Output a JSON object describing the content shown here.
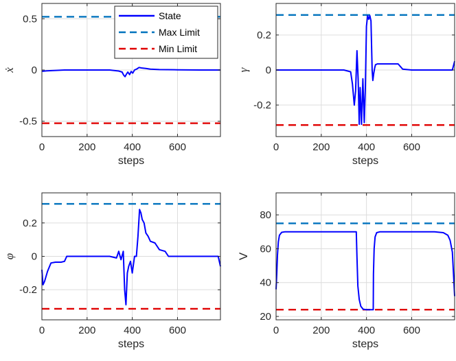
{
  "chart_data": [
    {
      "type": "line",
      "ylabel": "ẋ",
      "ylabel_style": "italic",
      "xlabel": "steps",
      "xlim": [
        0,
        790
      ],
      "ylim": [
        -0.65,
        0.65
      ],
      "xticks": [
        0,
        200,
        400,
        600
      ],
      "yticks": [
        -0.5,
        0,
        0.5
      ],
      "ytick_labels": [
        "-0.5",
        "0",
        "0.5"
      ],
      "grid": true,
      "legend": {
        "placement": "top-right",
        "entries": [
          {
            "label": "State",
            "color": "#0000ff",
            "style": "solid"
          },
          {
            "label": "Max Limit",
            "color": "#0072bd",
            "style": "dashed"
          },
          {
            "label": "Min Limit",
            "color": "#e00000",
            "style": "dashed"
          }
        ]
      },
      "limits": {
        "max": 0.52,
        "min": -0.52
      },
      "series": [
        {
          "name": "State",
          "color": "#0000ff",
          "x": [
            0,
            5,
            20,
            60,
            100,
            200,
            300,
            340,
            355,
            362,
            368,
            374,
            380,
            388,
            395,
            402,
            410,
            420,
            430,
            440,
            460,
            480,
            520,
            600,
            700,
            790
          ],
          "y": [
            -0.01,
            -0.012,
            -0.008,
            -0.004,
            0.0,
            0.0,
            0.0,
            -0.01,
            -0.02,
            -0.05,
            -0.065,
            -0.04,
            -0.02,
            -0.045,
            -0.015,
            -0.03,
            0.0,
            0.01,
            0.025,
            0.02,
            0.015,
            0.008,
            0.004,
            0.002,
            0.0,
            0.0
          ]
        }
      ]
    },
    {
      "type": "line",
      "ylabel": "γ",
      "ylabel_style": "italic",
      "xlabel": "steps",
      "xlim": [
        0,
        790
      ],
      "ylim": [
        -0.38,
        0.38
      ],
      "xticks": [
        0,
        200,
        400,
        600
      ],
      "yticks": [
        -0.2,
        0,
        0.2
      ],
      "ytick_labels": [
        "-0.2",
        "0",
        "0.2"
      ],
      "grid": true,
      "limits": {
        "max": 0.3141,
        "min": -0.3141
      },
      "series": [
        {
          "name": "State",
          "color": "#0000ff",
          "x": [
            0,
            100,
            200,
            300,
            330,
            338,
            346,
            352,
            358,
            363,
            368,
            372,
            378,
            384,
            390,
            395,
            400,
            405,
            410,
            415,
            420,
            425,
            428,
            432,
            436,
            440,
            448,
            460,
            500,
            540,
            560,
            600,
            700,
            780,
            790
          ],
          "y": [
            0.0,
            0.0,
            0.0,
            0.0,
            -0.01,
            -0.08,
            -0.2,
            -0.12,
            0.11,
            -0.05,
            -0.31,
            -0.1,
            -0.31,
            -0.05,
            -0.3,
            -0.1,
            0.25,
            0.31,
            0.29,
            0.31,
            0.28,
            0.0,
            -0.06,
            -0.02,
            0.01,
            0.03,
            0.035,
            0.035,
            0.035,
            0.035,
            0.005,
            0.0,
            0.0,
            0.0,
            0.05
          ]
        }
      ]
    },
    {
      "type": "line",
      "ylabel": "φ",
      "ylabel_style": "italic",
      "xlabel": "steps",
      "xlim": [
        0,
        790
      ],
      "ylim": [
        -0.38,
        0.38
      ],
      "xticks": [
        0,
        200,
        400,
        600
      ],
      "yticks": [
        -0.2,
        0,
        0.2
      ],
      "ytick_labels": [
        "-0.2",
        "0",
        "0.2"
      ],
      "grid": true,
      "limits": {
        "max": 0.3141,
        "min": -0.3141
      },
      "series": [
        {
          "name": "State",
          "color": "#0000ff",
          "x": [
            0,
            5,
            12,
            25,
            40,
            60,
            85,
            100,
            110,
            150,
            200,
            250,
            300,
            330,
            340,
            350,
            360,
            366,
            372,
            378,
            384,
            392,
            400,
            410,
            418,
            425,
            432,
            438,
            444,
            452,
            460,
            470,
            480,
            500,
            520,
            545,
            560,
            600,
            700,
            780,
            790
          ],
          "y": [
            -0.08,
            -0.17,
            -0.15,
            -0.09,
            -0.04,
            -0.035,
            -0.035,
            -0.03,
            0.0,
            0.0,
            0.0,
            0.0,
            0.0,
            -0.01,
            0.03,
            -0.02,
            0.03,
            -0.2,
            -0.29,
            -0.1,
            -0.06,
            -0.03,
            -0.1,
            0.0,
            0.0,
            0.12,
            0.28,
            0.26,
            0.22,
            0.2,
            0.14,
            0.12,
            0.09,
            0.08,
            0.04,
            0.03,
            0.0,
            0.0,
            0.0,
            0.0,
            -0.06
          ]
        }
      ]
    },
    {
      "type": "line",
      "ylabel": "V",
      "ylabel_style": "plain",
      "xlabel": "steps",
      "xlim": [
        0,
        790
      ],
      "ylim": [
        18,
        93
      ],
      "xticks": [
        0,
        200,
        400,
        600
      ],
      "yticks": [
        20,
        40,
        60,
        80
      ],
      "ytick_labels": [
        "20",
        "40",
        "60",
        "80"
      ],
      "grid": true,
      "limits": {
        "max": 75,
        "min": 24
      },
      "series": [
        {
          "name": "State",
          "color": "#0000ff",
          "x": [
            0,
            3,
            6,
            10,
            15,
            25,
            40,
            100,
            200,
            300,
            355,
            358,
            362,
            368,
            375,
            385,
            400,
            420,
            430,
            431,
            434,
            438,
            445,
            460,
            500,
            600,
            700,
            740,
            760,
            770,
            780,
            787,
            790
          ],
          "y": [
            36,
            45,
            56,
            64,
            68,
            69.7,
            70,
            70,
            70,
            70,
            70,
            55,
            38,
            30,
            26,
            24.3,
            24,
            24,
            24,
            45,
            60,
            67,
            69.5,
            70,
            70,
            70,
            70,
            69.5,
            68,
            65,
            58,
            40,
            32
          ]
        }
      ]
    }
  ]
}
